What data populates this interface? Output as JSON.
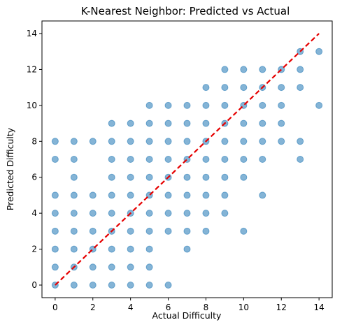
{
  "chart_data": {
    "type": "scatter",
    "title": "K-Nearest Neighbor: Predicted vs Actual",
    "xlabel": "Actual Difficulty",
    "ylabel": "Predicted Difficulty",
    "xlim": [
      -0.7,
      14.7
    ],
    "ylim": [
      -0.7,
      14.7
    ],
    "xticks": [
      0,
      2,
      4,
      6,
      8,
      10,
      12,
      14
    ],
    "yticks": [
      0,
      2,
      4,
      6,
      8,
      10,
      12,
      14
    ],
    "grid": false,
    "point_color": "#1f77b4",
    "point_alpha": 0.55,
    "reference_line": {
      "from": [
        0,
        0
      ],
      "to": [
        14,
        14
      ],
      "color": "#e60000",
      "style": "dashed"
    },
    "points": [
      [
        0,
        0
      ],
      [
        0,
        1
      ],
      [
        0,
        2
      ],
      [
        0,
        3
      ],
      [
        0,
        4
      ],
      [
        0,
        5
      ],
      [
        0,
        7
      ],
      [
        0,
        8
      ],
      [
        1,
        0
      ],
      [
        1,
        1
      ],
      [
        1,
        2
      ],
      [
        1,
        3
      ],
      [
        1,
        4
      ],
      [
        1,
        5
      ],
      [
        1,
        6
      ],
      [
        1,
        7
      ],
      [
        1,
        8
      ],
      [
        2,
        0
      ],
      [
        2,
        1
      ],
      [
        2,
        2
      ],
      [
        2,
        3
      ],
      [
        2,
        4
      ],
      [
        2,
        5
      ],
      [
        2,
        8
      ],
      [
        3,
        0
      ],
      [
        3,
        1
      ],
      [
        3,
        2
      ],
      [
        3,
        3
      ],
      [
        3,
        4
      ],
      [
        3,
        5
      ],
      [
        3,
        6
      ],
      [
        3,
        7
      ],
      [
        3,
        8
      ],
      [
        3,
        9
      ],
      [
        4,
        0
      ],
      [
        4,
        1
      ],
      [
        4,
        2
      ],
      [
        4,
        3
      ],
      [
        4,
        4
      ],
      [
        4,
        5
      ],
      [
        4,
        6
      ],
      [
        4,
        7
      ],
      [
        4,
        8
      ],
      [
        4,
        9
      ],
      [
        5,
        0
      ],
      [
        5,
        1
      ],
      [
        5,
        2
      ],
      [
        5,
        3
      ],
      [
        5,
        4
      ],
      [
        5,
        5
      ],
      [
        5,
        6
      ],
      [
        5,
        7
      ],
      [
        5,
        8
      ],
      [
        5,
        9
      ],
      [
        5,
        10
      ],
      [
        6,
        0
      ],
      [
        6,
        3
      ],
      [
        6,
        4
      ],
      [
        6,
        5
      ],
      [
        6,
        6
      ],
      [
        6,
        7
      ],
      [
        6,
        8
      ],
      [
        6,
        9
      ],
      [
        6,
        10
      ],
      [
        7,
        2
      ],
      [
        7,
        3
      ],
      [
        7,
        4
      ],
      [
        7,
        5
      ],
      [
        7,
        6
      ],
      [
        7,
        7
      ],
      [
        7,
        8
      ],
      [
        7,
        9
      ],
      [
        7,
        10
      ],
      [
        8,
        3
      ],
      [
        8,
        4
      ],
      [
        8,
        5
      ],
      [
        8,
        6
      ],
      [
        8,
        7
      ],
      [
        8,
        8
      ],
      [
        8,
        9
      ],
      [
        8,
        10
      ],
      [
        8,
        11
      ],
      [
        9,
        4
      ],
      [
        9,
        5
      ],
      [
        9,
        6
      ],
      [
        9,
        7
      ],
      [
        9,
        8
      ],
      [
        9,
        9
      ],
      [
        9,
        10
      ],
      [
        9,
        11
      ],
      [
        9,
        12
      ],
      [
        10,
        3
      ],
      [
        10,
        6
      ],
      [
        10,
        7
      ],
      [
        10,
        8
      ],
      [
        10,
        9
      ],
      [
        10,
        10
      ],
      [
        10,
        11
      ],
      [
        10,
        12
      ],
      [
        11,
        5
      ],
      [
        11,
        7
      ],
      [
        11,
        8
      ],
      [
        11,
        9
      ],
      [
        11,
        10
      ],
      [
        11,
        11
      ],
      [
        11,
        12
      ],
      [
        12,
        8
      ],
      [
        12,
        9
      ],
      [
        12,
        10
      ],
      [
        12,
        11
      ],
      [
        12,
        12
      ],
      [
        13,
        7
      ],
      [
        13,
        8
      ],
      [
        13,
        11
      ],
      [
        13,
        12
      ],
      [
        13,
        13
      ],
      [
        14,
        10
      ],
      [
        14,
        13
      ]
    ]
  }
}
